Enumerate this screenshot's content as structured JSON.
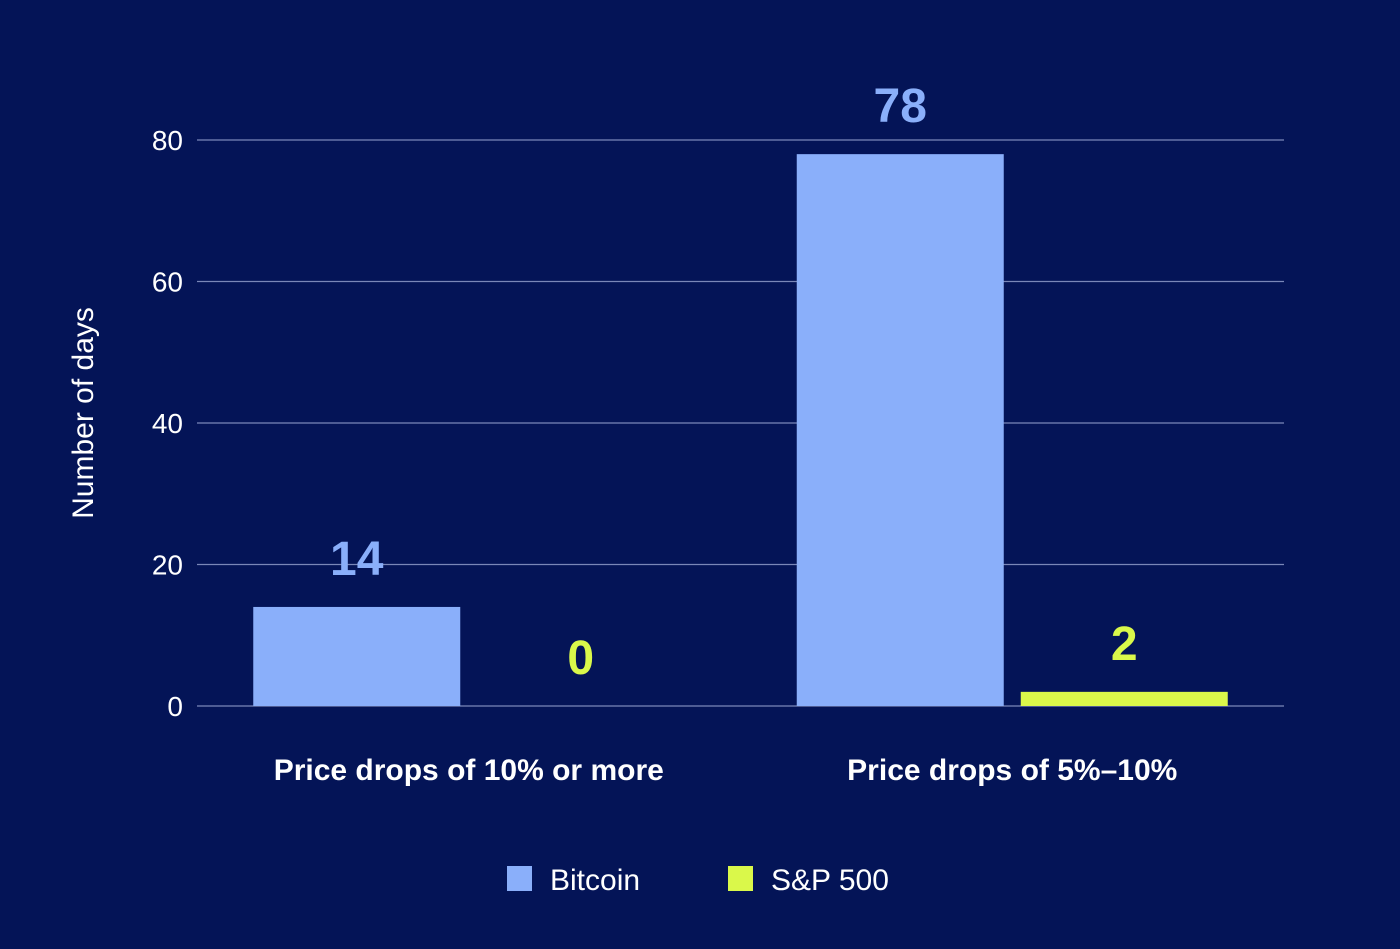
{
  "chart_data": {
    "type": "bar",
    "title": "",
    "xlabel": "",
    "ylabel": "Number of days",
    "ylim": [
      0,
      80
    ],
    "yticks": [
      0,
      20,
      40,
      60,
      80
    ],
    "grid": true,
    "legend_position": "bottom-center",
    "categories": [
      "Price drops of 10% or more",
      "Price drops of 5%–10%"
    ],
    "series": [
      {
        "name": "Bitcoin",
        "values": [
          14,
          78
        ],
        "labels": [
          "14",
          "78"
        ],
        "color": "#8AAFFA"
      },
      {
        "name": "S&P 500",
        "values": [
          0,
          2
        ],
        "labels": [
          "0",
          "2"
        ],
        "color": "#DAF84A"
      }
    ],
    "background_color": "#041457",
    "grid_color": "#7A87B8"
  }
}
